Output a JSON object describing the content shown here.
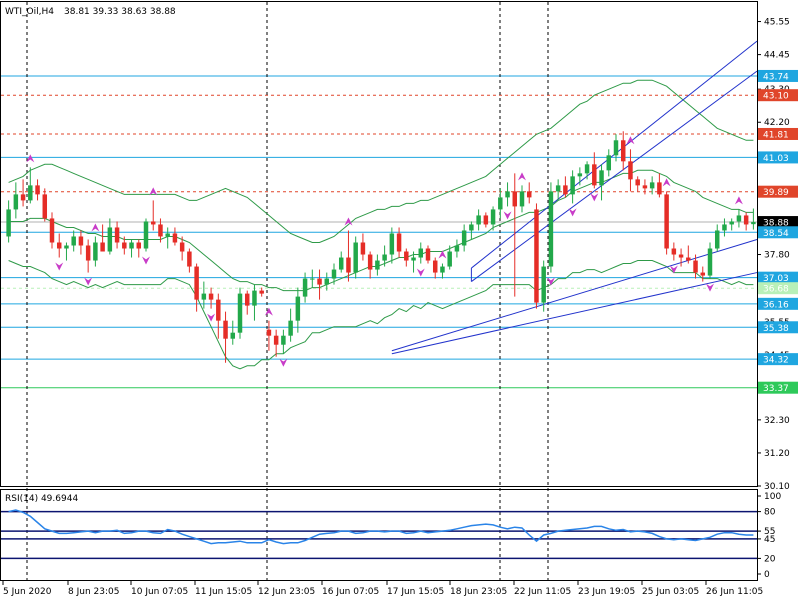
{
  "chart_data": {
    "type": "candlestick",
    "header": {
      "symbol_label": "WTI_Oil,H4",
      "ohlc_text": "38.81 39.33 38.63 38.88"
    },
    "price_axis": {
      "ymin": 30.1,
      "ymax": 46.2,
      "ticks": [
        45.55,
        44.45,
        43.3,
        42.2,
        41.05,
        39.95,
        38.85,
        37.8,
        36.65,
        35.55,
        34.45,
        33.35,
        32.3,
        31.2,
        30.1
      ],
      "tick_labels": [
        "45.55",
        "44.45",
        "43.30",
        "42.20",
        "41.05",
        "39.95",
        "38.85",
        "37.80",
        "36.65",
        "35.55",
        "34.45",
        "33.35",
        "32.30",
        "31.20",
        "30.10"
      ]
    },
    "time_axis": {
      "labels": [
        "5 Jun 2020",
        "8 Jun 23:05",
        "10 Jun 07:05",
        "11 Jun 15:05",
        "12 Jun 23:05",
        "16 Jun 07:05",
        "17 Jun 15:05",
        "18 Jun 23:05",
        "22 Jun 11:05",
        "23 Jun 19:05",
        "25 Jun 03:05",
        "26 Jun 11:05"
      ],
      "label_x_index": [
        0,
        8.5,
        18,
        27.5,
        36,
        45.5,
        55.5,
        64.5,
        74,
        83.5,
        92.5,
        101.5
      ],
      "vlines_index": [
        3,
        36,
        64.5,
        69
      ]
    },
    "candles": [
      {
        "o": 38.4,
        "h": 39.6,
        "l": 38.2,
        "c": 39.3
      },
      {
        "o": 39.3,
        "h": 40.2,
        "l": 39.0,
        "c": 39.8
      },
      {
        "o": 39.8,
        "h": 40.3,
        "l": 39.4,
        "c": 39.6
      },
      {
        "o": 39.6,
        "h": 40.7,
        "l": 39.5,
        "c": 40.1
      },
      {
        "o": 40.1,
        "h": 40.3,
        "l": 39.6,
        "c": 39.8
      },
      {
        "o": 39.8,
        "h": 40.0,
        "l": 38.9,
        "c": 39.0
      },
      {
        "o": 39.0,
        "h": 39.2,
        "l": 38.0,
        "c": 38.2
      },
      {
        "o": 38.2,
        "h": 38.5,
        "l": 37.7,
        "c": 38.0
      },
      {
        "o": 38.0,
        "h": 38.2,
        "l": 37.6,
        "c": 38.1
      },
      {
        "o": 38.1,
        "h": 38.6,
        "l": 37.9,
        "c": 38.4
      },
      {
        "o": 38.4,
        "h": 38.6,
        "l": 37.8,
        "c": 38.1
      },
      {
        "o": 38.1,
        "h": 38.3,
        "l": 37.2,
        "c": 37.6
      },
      {
        "o": 37.6,
        "h": 38.4,
        "l": 37.4,
        "c": 38.2
      },
      {
        "o": 38.2,
        "h": 38.8,
        "l": 37.9,
        "c": 37.9
      },
      {
        "o": 37.9,
        "h": 39.0,
        "l": 37.8,
        "c": 38.7
      },
      {
        "o": 38.7,
        "h": 38.9,
        "l": 38.0,
        "c": 38.2
      },
      {
        "o": 38.2,
        "h": 38.4,
        "l": 37.8,
        "c": 38.0
      },
      {
        "o": 38.0,
        "h": 38.3,
        "l": 37.7,
        "c": 38.2
      },
      {
        "o": 38.2,
        "h": 38.3,
        "l": 37.7,
        "c": 38.0
      },
      {
        "o": 38.0,
        "h": 39.0,
        "l": 37.9,
        "c": 38.9
      },
      {
        "o": 38.9,
        "h": 39.6,
        "l": 38.6,
        "c": 38.8
      },
      {
        "o": 38.8,
        "h": 39.0,
        "l": 38.2,
        "c": 38.4
      },
      {
        "o": 38.4,
        "h": 38.7,
        "l": 38.0,
        "c": 38.5
      },
      {
        "o": 38.5,
        "h": 38.7,
        "l": 38.1,
        "c": 38.2
      },
      {
        "o": 38.2,
        "h": 38.4,
        "l": 37.6,
        "c": 37.9
      },
      {
        "o": 37.9,
        "h": 38.0,
        "l": 37.2,
        "c": 37.4
      },
      {
        "o": 37.4,
        "h": 37.5,
        "l": 35.9,
        "c": 36.3
      },
      {
        "o": 36.3,
        "h": 36.9,
        "l": 36.0,
        "c": 36.5
      },
      {
        "o": 36.5,
        "h": 36.7,
        "l": 36.0,
        "c": 36.3
      },
      {
        "o": 36.3,
        "h": 36.5,
        "l": 35.0,
        "c": 35.6
      },
      {
        "o": 35.6,
        "h": 35.9,
        "l": 34.2,
        "c": 35.0
      },
      {
        "o": 35.0,
        "h": 35.6,
        "l": 34.8,
        "c": 35.2
      },
      {
        "o": 35.2,
        "h": 36.7,
        "l": 35.0,
        "c": 36.5
      },
      {
        "o": 36.5,
        "h": 36.6,
        "l": 35.8,
        "c": 36.1
      },
      {
        "o": 36.1,
        "h": 36.8,
        "l": 35.6,
        "c": 36.6
      },
      {
        "o": 36.6,
        "h": 36.7,
        "l": 36.4,
        "c": 36.5
      },
      {
        "o": 35.3,
        "h": 35.6,
        "l": 34.6,
        "c": 35.1
      },
      {
        "o": 35.1,
        "h": 35.3,
        "l": 34.4,
        "c": 34.8
      },
      {
        "o": 34.8,
        "h": 35.3,
        "l": 34.5,
        "c": 35.1
      },
      {
        "o": 35.1,
        "h": 36.0,
        "l": 34.9,
        "c": 35.6
      },
      {
        "o": 35.6,
        "h": 36.7,
        "l": 35.2,
        "c": 36.4
      },
      {
        "o": 36.4,
        "h": 37.2,
        "l": 36.2,
        "c": 37.0
      },
      {
        "o": 37.0,
        "h": 37.3,
        "l": 36.7,
        "c": 37.0
      },
      {
        "o": 37.0,
        "h": 37.3,
        "l": 36.3,
        "c": 36.8
      },
      {
        "o": 36.8,
        "h": 37.2,
        "l": 36.6,
        "c": 37.0
      },
      {
        "o": 37.0,
        "h": 37.5,
        "l": 36.8,
        "c": 37.3
      },
      {
        "o": 37.3,
        "h": 37.9,
        "l": 37.2,
        "c": 37.7
      },
      {
        "o": 37.7,
        "h": 38.6,
        "l": 36.9,
        "c": 37.2
      },
      {
        "o": 37.2,
        "h": 38.4,
        "l": 37.0,
        "c": 38.2
      },
      {
        "o": 38.2,
        "h": 38.5,
        "l": 37.6,
        "c": 37.8
      },
      {
        "o": 37.8,
        "h": 37.9,
        "l": 37.0,
        "c": 37.3
      },
      {
        "o": 37.3,
        "h": 37.8,
        "l": 37.1,
        "c": 37.6
      },
      {
        "o": 37.6,
        "h": 38.1,
        "l": 37.4,
        "c": 37.8
      },
      {
        "o": 37.8,
        "h": 38.7,
        "l": 37.5,
        "c": 38.5
      },
      {
        "o": 38.5,
        "h": 38.7,
        "l": 37.7,
        "c": 37.9
      },
      {
        "o": 37.9,
        "h": 38.0,
        "l": 37.4,
        "c": 37.6
      },
      {
        "o": 37.6,
        "h": 37.9,
        "l": 37.2,
        "c": 37.7
      },
      {
        "o": 37.7,
        "h": 38.2,
        "l": 37.5,
        "c": 38.0
      },
      {
        "o": 38.0,
        "h": 38.1,
        "l": 37.5,
        "c": 37.6
      },
      {
        "o": 37.6,
        "h": 37.7,
        "l": 37.0,
        "c": 37.2
      },
      {
        "o": 37.2,
        "h": 37.5,
        "l": 37.0,
        "c": 37.4
      },
      {
        "o": 37.4,
        "h": 38.1,
        "l": 37.3,
        "c": 37.9
      },
      {
        "o": 37.9,
        "h": 38.3,
        "l": 37.7,
        "c": 38.1
      },
      {
        "o": 38.1,
        "h": 38.8,
        "l": 37.9,
        "c": 38.6
      },
      {
        "o": 38.6,
        "h": 38.9,
        "l": 38.3,
        "c": 38.8
      },
      {
        "o": 38.8,
        "h": 39.3,
        "l": 38.6,
        "c": 39.1
      },
      {
        "o": 39.1,
        "h": 39.2,
        "l": 38.7,
        "c": 38.8
      },
      {
        "o": 38.8,
        "h": 39.4,
        "l": 38.6,
        "c": 39.3
      },
      {
        "o": 39.3,
        "h": 40.0,
        "l": 39.0,
        "c": 39.7
      },
      {
        "o": 39.7,
        "h": 40.2,
        "l": 39.4,
        "c": 39.9
      },
      {
        "o": 39.9,
        "h": 40.5,
        "l": 36.4,
        "c": 39.4
      },
      {
        "o": 39.4,
        "h": 40.1,
        "l": 39.2,
        "c": 39.9
      },
      {
        "o": 39.9,
        "h": 40.2,
        "l": 39.5,
        "c": 39.7
      },
      {
        "o": 39.3,
        "h": 39.5,
        "l": 36.0,
        "c": 36.2
      },
      {
        "o": 36.2,
        "h": 37.6,
        "l": 35.9,
        "c": 37.4
      },
      {
        "o": 37.4,
        "h": 40.2,
        "l": 37.2,
        "c": 39.9
      },
      {
        "o": 39.9,
        "h": 40.3,
        "l": 39.6,
        "c": 40.1
      },
      {
        "o": 40.1,
        "h": 40.4,
        "l": 39.7,
        "c": 39.8
      },
      {
        "o": 39.8,
        "h": 40.6,
        "l": 39.5,
        "c": 40.4
      },
      {
        "o": 40.4,
        "h": 40.7,
        "l": 40.1,
        "c": 40.5
      },
      {
        "o": 40.5,
        "h": 40.9,
        "l": 40.3,
        "c": 40.8
      },
      {
        "o": 40.8,
        "h": 41.2,
        "l": 40.0,
        "c": 40.1
      },
      {
        "o": 40.1,
        "h": 40.8,
        "l": 39.6,
        "c": 40.6
      },
      {
        "o": 40.6,
        "h": 41.3,
        "l": 40.4,
        "c": 41.1
      },
      {
        "o": 41.1,
        "h": 41.8,
        "l": 40.9,
        "c": 41.6
      },
      {
        "o": 41.6,
        "h": 41.9,
        "l": 40.6,
        "c": 40.9
      },
      {
        "o": 40.9,
        "h": 41.3,
        "l": 39.9,
        "c": 40.3
      },
      {
        "o": 40.3,
        "h": 40.4,
        "l": 39.9,
        "c": 40.1
      },
      {
        "o": 40.1,
        "h": 40.3,
        "l": 39.8,
        "c": 40.0
      },
      {
        "o": 40.0,
        "h": 40.4,
        "l": 39.8,
        "c": 40.2
      },
      {
        "o": 40.2,
        "h": 40.5,
        "l": 39.7,
        "c": 39.8
      },
      {
        "o": 39.8,
        "h": 39.9,
        "l": 37.8,
        "c": 38.0
      },
      {
        "o": 38.0,
        "h": 38.2,
        "l": 37.6,
        "c": 37.8
      },
      {
        "o": 37.8,
        "h": 38.0,
        "l": 37.4,
        "c": 37.7
      },
      {
        "o": 37.7,
        "h": 38.1,
        "l": 37.5,
        "c": 37.6
      },
      {
        "o": 37.6,
        "h": 37.8,
        "l": 37.0,
        "c": 37.2
      },
      {
        "o": 37.2,
        "h": 37.4,
        "l": 36.9,
        "c": 37.1
      },
      {
        "o": 37.1,
        "h": 38.2,
        "l": 37.0,
        "c": 38.0
      },
      {
        "o": 38.0,
        "h": 38.8,
        "l": 37.9,
        "c": 38.6
      },
      {
        "o": 38.6,
        "h": 39.0,
        "l": 38.4,
        "c": 38.8
      },
      {
        "o": 38.8,
        "h": 39.0,
        "l": 38.6,
        "c": 38.9
      },
      {
        "o": 38.9,
        "h": 39.3,
        "l": 38.7,
        "c": 39.1
      },
      {
        "o": 39.1,
        "h": 39.2,
        "l": 38.6,
        "c": 38.8
      },
      {
        "o": 38.81,
        "h": 39.33,
        "l": 38.63,
        "c": 38.88
      }
    ],
    "bb_middle": [
      38.9,
      38.9,
      38.9,
      39.0,
      39.0,
      39.0,
      38.9,
      38.8,
      38.7,
      38.7,
      38.6,
      38.5,
      38.5,
      38.4,
      38.4,
      38.4,
      38.3,
      38.3,
      38.3,
      38.3,
      38.3,
      38.3,
      38.4,
      38.4,
      38.3,
      38.2,
      38.0,
      37.8,
      37.6,
      37.4,
      37.2,
      37.0,
      36.9,
      36.9,
      36.8,
      36.8,
      36.7,
      36.7,
      36.6,
      36.6,
      36.6,
      36.6,
      36.7,
      36.7,
      36.8,
      36.9,
      37.0,
      37.1,
      37.2,
      37.3,
      37.4,
      37.4,
      37.5,
      37.6,
      37.7,
      37.7,
      37.8,
      37.8,
      37.9,
      37.9,
      37.9,
      38.0,
      38.1,
      38.2,
      38.3,
      38.4,
      38.5,
      38.7,
      38.8,
      38.9,
      39.0,
      39.1,
      39.2,
      39.2,
      39.3,
      39.4,
      39.6,
      39.7,
      39.9,
      40.0,
      40.1,
      40.2,
      40.2,
      40.3,
      40.4,
      40.5,
      40.5,
      40.6,
      40.6,
      40.6,
      40.5,
      40.4,
      40.2,
      40.1,
      40.0,
      39.9,
      39.7,
      39.6,
      39.5,
      39.4,
      39.3,
      39.3,
      39.2,
      39.2
    ],
    "bb_upper": [
      40.2,
      40.3,
      40.4,
      40.6,
      40.7,
      40.8,
      40.8,
      40.7,
      40.6,
      40.5,
      40.4,
      40.3,
      40.2,
      40.1,
      40.0,
      39.9,
      39.8,
      39.8,
      39.8,
      39.8,
      39.8,
      39.8,
      39.8,
      39.8,
      39.7,
      39.6,
      39.6,
      39.7,
      39.8,
      39.9,
      40.0,
      39.9,
      39.8,
      39.7,
      39.5,
      39.3,
      39.1,
      38.9,
      38.7,
      38.5,
      38.4,
      38.3,
      38.2,
      38.2,
      38.3,
      38.4,
      38.6,
      38.8,
      39.0,
      39.1,
      39.2,
      39.3,
      39.3,
      39.4,
      39.4,
      39.5,
      39.5,
      39.6,
      39.6,
      39.7,
      39.8,
      39.9,
      40.0,
      40.1,
      40.2,
      40.3,
      40.4,
      40.6,
      40.8,
      41.0,
      41.2,
      41.4,
      41.6,
      41.8,
      41.9,
      42.0,
      42.2,
      42.4,
      42.6,
      42.8,
      42.9,
      43.1,
      43.2,
      43.3,
      43.4,
      43.5,
      43.5,
      43.6,
      43.6,
      43.6,
      43.5,
      43.4,
      43.2,
      43.0,
      42.8,
      42.6,
      42.4,
      42.2,
      42.0,
      41.9,
      41.8,
      41.7,
      41.6,
      41.6
    ],
    "bb_lower": [
      37.6,
      37.5,
      37.4,
      37.4,
      37.3,
      37.2,
      37.0,
      36.9,
      36.8,
      36.9,
      36.8,
      36.7,
      36.8,
      36.7,
      36.8,
      36.9,
      36.8,
      36.8,
      36.8,
      36.8,
      36.8,
      36.8,
      37.0,
      37.0,
      36.9,
      36.8,
      36.4,
      35.9,
      35.4,
      34.9,
      34.4,
      34.1,
      34.0,
      34.1,
      34.1,
      34.3,
      34.3,
      34.5,
      34.5,
      34.7,
      34.8,
      34.9,
      35.2,
      35.2,
      35.3,
      35.4,
      35.4,
      35.4,
      35.4,
      35.5,
      35.6,
      35.5,
      35.7,
      35.8,
      36.0,
      35.9,
      36.1,
      36.0,
      36.2,
      36.1,
      36.0,
      36.1,
      36.2,
      36.3,
      36.4,
      36.5,
      36.6,
      36.8,
      36.8,
      36.8,
      36.8,
      36.8,
      36.8,
      36.6,
      36.7,
      36.8,
      37.0,
      37.0,
      37.2,
      37.2,
      37.3,
      37.3,
      37.2,
      37.3,
      37.4,
      37.5,
      37.5,
      37.6,
      37.6,
      37.6,
      37.5,
      37.4,
      37.2,
      37.2,
      37.2,
      37.2,
      37.0,
      37.0,
      37.0,
      36.9,
      36.8,
      36.9,
      36.8,
      36.8
    ],
    "bb_upper_override": [],
    "channel_lines": [
      {
        "x1": 64,
        "y1": 37.35,
        "x2": 106,
        "y2": 44.9
      },
      {
        "x1": 64,
        "y1": 36.9,
        "x2": 106,
        "y2": 43.9
      },
      {
        "x1": 53,
        "y1": 34.6,
        "x2": 106,
        "y2": 38.3
      },
      {
        "x1": 53,
        "y1": 34.5,
        "x2": 106,
        "y2": 37.2
      }
    ],
    "hlines": [
      {
        "price": 43.74,
        "label": "43.74",
        "color": "#1fa6e0",
        "style": "solid"
      },
      {
        "price": 43.1,
        "label": "43.10",
        "color": "#e0452a",
        "style": "dashed"
      },
      {
        "price": 41.81,
        "label": "41.81",
        "color": "#e0452a",
        "style": "dashed"
      },
      {
        "price": 41.03,
        "label": "41.03",
        "color": "#1fa6e0",
        "style": "solid"
      },
      {
        "price": 39.89,
        "label": "39.89",
        "color": "#e0452a",
        "style": "dashed"
      },
      {
        "price": 38.88,
        "label": "38.88",
        "color": "#000000",
        "style": "current"
      },
      {
        "price": 38.54,
        "label": "38.54",
        "color": "#1fa6e0",
        "style": "solid"
      },
      {
        "price": 37.03,
        "label": "37.03",
        "color": "#1fa6e0",
        "style": "solid"
      },
      {
        "price": 36.68,
        "label": "36.68",
        "color": "#b8f0b8",
        "style": "dashed"
      },
      {
        "price": 36.16,
        "label": "36.16",
        "color": "#1fa6e0",
        "style": "solid"
      },
      {
        "price": 35.38,
        "label": "35.38",
        "color": "#1fa6e0",
        "style": "solid"
      },
      {
        "price": 34.32,
        "label": "34.32",
        "color": "#1fa6e0",
        "style": "solid"
      },
      {
        "price": 33.37,
        "label": "33.37",
        "color": "#2ec95a",
        "style": "solid"
      }
    ],
    "fractals_up": [
      3,
      12,
      20,
      36,
      47,
      60,
      71,
      86,
      91,
      101
    ],
    "fractals_down": [
      7,
      11,
      19,
      28,
      38,
      57,
      69,
      75,
      78,
      81,
      92,
      97
    ],
    "rsi": {
      "label": "RSI(14) 49.6944",
      "ymin": 0,
      "ymax": 100,
      "ticks": [
        100,
        80,
        55,
        45,
        20,
        0
      ],
      "tick_labels": [
        "100",
        "80",
        "55",
        "45",
        "20",
        "0"
      ],
      "levels": [
        80,
        55,
        45,
        20
      ],
      "values": [
        80,
        82,
        79,
        74,
        66,
        58,
        55,
        52,
        52,
        53,
        54,
        55,
        53,
        55,
        55,
        56,
        52,
        53,
        55,
        55,
        53,
        52,
        57,
        55,
        51,
        48,
        45,
        42,
        39,
        40,
        40,
        41,
        42,
        40,
        40,
        40,
        44,
        41,
        39,
        40,
        40,
        43,
        47,
        51,
        52,
        53,
        55,
        55,
        52,
        53,
        55,
        55,
        54,
        55,
        55,
        52,
        53,
        55,
        53,
        54,
        55,
        56,
        58,
        60,
        62,
        63,
        64,
        63,
        60,
        58,
        60,
        59,
        50,
        42,
        50,
        52,
        55,
        56,
        57,
        58,
        59,
        61,
        61,
        58,
        56,
        57,
        54,
        55,
        54,
        52,
        48,
        45,
        44,
        45,
        44,
        43,
        45,
        47,
        51,
        53,
        53,
        51,
        50,
        50
      ]
    },
    "colors": {
      "bull": "#22a84a",
      "bear": "#e52d27",
      "bb": "#2e9a48",
      "channel": "#2233cc",
      "vline": "#000000",
      "fractal": "#c83cc8",
      "rsi_line": "#2a84e8",
      "rsi_level": "#0c1470"
    }
  }
}
